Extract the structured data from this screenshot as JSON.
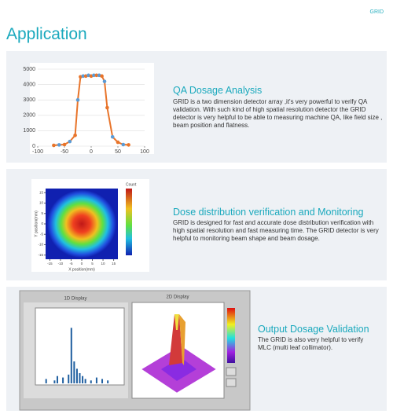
{
  "header": {
    "brand": "GRID",
    "title": "Application"
  },
  "sections": [
    {
      "title": "QA Dosage Analysis",
      "body": "GRID is a two dimension detector array ,it's very powerful to verify  QA validation. With such kind of high spatial resolution detector the GRID detector is very helpful to be able to measuring machine QA, like field size , beam position and flatness.",
      "chart": {
        "type": "line",
        "color": "#e8742a",
        "marker_color": "#5b9bd5",
        "x": [
          -70,
          -60,
          -50,
          -40,
          -30,
          -25,
          -20,
          -15,
          -10,
          -5,
          0,
          5,
          10,
          15,
          20,
          25,
          30,
          40,
          50,
          60,
          70
        ],
        "values": [
          50,
          80,
          100,
          300,
          700,
          3000,
          4500,
          4550,
          4550,
          4600,
          4550,
          4600,
          4600,
          4600,
          4550,
          4200,
          2500,
          600,
          250,
          100,
          80
        ],
        "xlim": [
          -100,
          100
        ],
        "ylim": [
          0,
          5000
        ],
        "xticks": [
          -100,
          -50,
          0,
          50,
          100
        ],
        "yticks": [
          0,
          1000,
          2000,
          3000,
          4000,
          5000
        ],
        "grid": true
      }
    },
    {
      "title": "Dose distribution verification and Monitoring",
      "body": "GRID is designed for fast and accurate dose distribution verification with high spatial resolution and fast measuring time. The GRID detector is very helpful to monitoring beam shape and beam dosage.",
      "heatmap": {
        "xlabel": "X position(mm)",
        "ylabel": "Y position(mm)",
        "colorbar_title": "Count",
        "xlim": [
          -17,
          17
        ],
        "ylim": [
          -17,
          17
        ],
        "xticks": [
          -15,
          -10,
          -5,
          0,
          5,
          10,
          15
        ],
        "yticks": [
          -15,
          -10,
          -5,
          0,
          5,
          10,
          15
        ]
      }
    },
    {
      "title": "Output Dosage Validation",
      "body": "The GRID is also very helpful to verify MLC (multi leaf collimator).",
      "screenshot": {
        "panel_titles": [
          "1D Display",
          "2D Display"
        ],
        "histogram": {
          "type": "bar",
          "color": "#1f5fa0",
          "x": [
            -60,
            -45,
            -40,
            -30,
            -20,
            -15,
            -10,
            -5,
            0,
            5,
            10,
            20,
            30,
            40,
            50
          ],
          "values": [
            300,
            200,
            500,
            400,
            600,
            3800,
            1500,
            1000,
            700,
            500,
            300,
            200,
            400,
            300,
            200
          ],
          "xlim": [
            -75,
            75
          ],
          "ylim": [
            0,
            5000
          ]
        }
      }
    }
  ]
}
